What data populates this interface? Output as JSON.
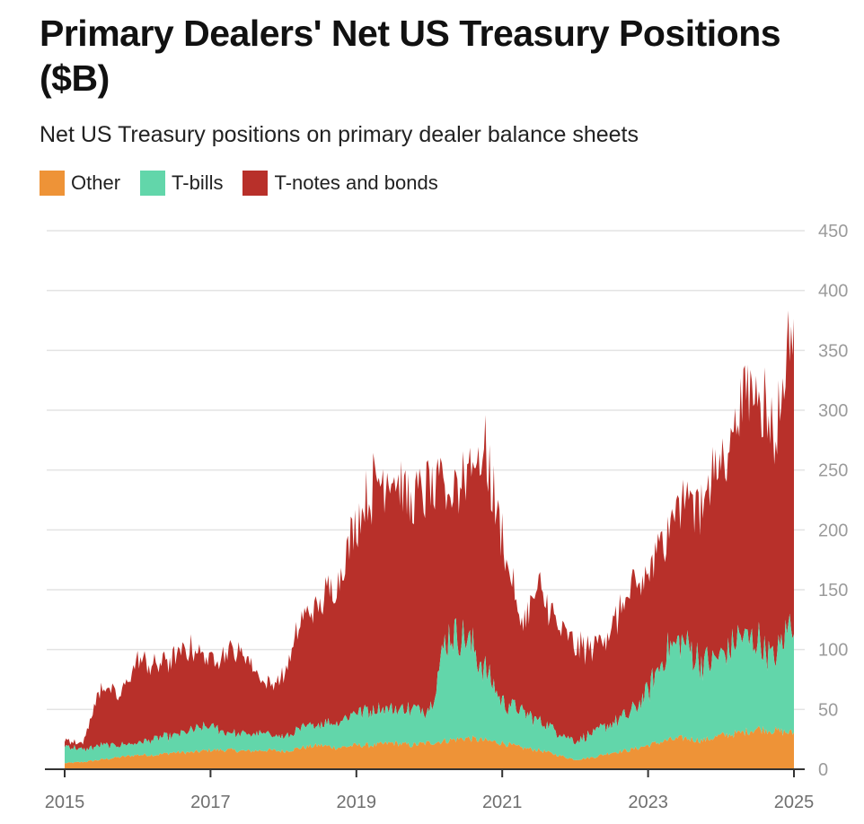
{
  "title": "Primary Dealers' Net US Treasury Positions ($B)",
  "subtitle": "Net US Treasury positions on primary dealer balance sheets",
  "legend": [
    {
      "label": "Other",
      "color": "#ee9337"
    },
    {
      "label": "T-bills",
      "color": "#62d6aa"
    },
    {
      "label": "T-notes and bonds",
      "color": "#b8302a"
    }
  ],
  "chart_data": {
    "type": "area",
    "stacked": true,
    "title": "Primary Dealers' Net US Treasury Positions ($B)",
    "subtitle": "Net US Treasury positions on primary dealer balance sheets",
    "x_axis": {
      "range": [
        2015.0,
        2025.0
      ],
      "ticks": [
        2015,
        2017,
        2019,
        2021,
        2023,
        2025
      ],
      "tick_labels": [
        "2015",
        "2017",
        "2019",
        "2021",
        "2023",
        "2025"
      ]
    },
    "y_axis": {
      "range": [
        0,
        450
      ],
      "ticks": [
        0,
        50,
        100,
        150,
        200,
        250,
        300,
        350,
        400,
        450
      ],
      "tick_labels": [
        "0",
        "50",
        "100",
        "150",
        "200",
        "250",
        "300",
        "350",
        "400",
        "450"
      ],
      "position": "right",
      "grid": true
    },
    "x": [
      2015.0,
      2015.25,
      2015.5,
      2015.75,
      2016.0,
      2016.25,
      2016.5,
      2016.75,
      2017.0,
      2017.25,
      2017.5,
      2017.75,
      2018.0,
      2018.25,
      2018.5,
      2018.75,
      2019.0,
      2019.25,
      2019.5,
      2019.75,
      2020.0,
      2020.25,
      2020.5,
      2020.75,
      2021.0,
      2021.25,
      2021.5,
      2021.75,
      2022.0,
      2022.25,
      2022.5,
      2022.75,
      2023.0,
      2023.25,
      2023.5,
      2023.75,
      2024.0,
      2024.25,
      2024.5,
      2024.75,
      2025.0
    ],
    "series": [
      {
        "name": "Other",
        "color": "#ee9337",
        "values": [
          5,
          6,
          8,
          10,
          12,
          12,
          14,
          14,
          16,
          16,
          15,
          16,
          15,
          18,
          20,
          18,
          20,
          20,
          22,
          20,
          22,
          24,
          26,
          24,
          22,
          18,
          16,
          12,
          8,
          10,
          14,
          16,
          20,
          24,
          26,
          24,
          28,
          30,
          34,
          32,
          30
        ]
      },
      {
        "name": "T-bills",
        "color": "#62d6aa",
        "values": [
          15,
          10,
          12,
          10,
          10,
          14,
          14,
          18,
          20,
          14,
          14,
          14,
          12,
          16,
          18,
          22,
          28,
          30,
          28,
          30,
          28,
          90,
          85,
          60,
          35,
          30,
          25,
          20,
          16,
          20,
          25,
          30,
          45,
          75,
          80,
          65,
          65,
          80,
          75,
          60,
          100
        ]
      },
      {
        "name": "T-notes and bonds",
        "color": "#b8302a",
        "values": [
          5,
          5,
          50,
          40,
          70,
          60,
          65,
          68,
          55,
          70,
          65,
          40,
          50,
          90,
          100,
          120,
          160,
          190,
          200,
          170,
          190,
          120,
          140,
          180,
          140,
          70,
          110,
          90,
          80,
          70,
          80,
          100,
          95,
          105,
          120,
          140,
          160,
          190,
          220,
          180,
          260
        ]
      }
    ]
  }
}
